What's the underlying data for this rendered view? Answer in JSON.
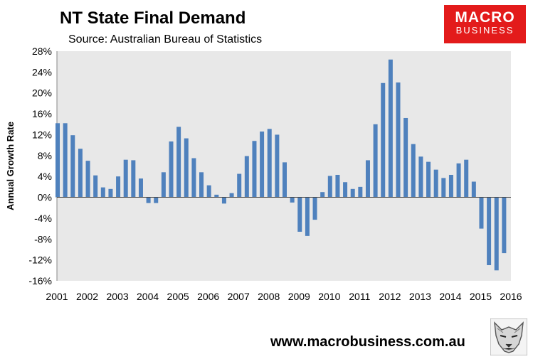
{
  "brand": {
    "logo_line1": "MACRO",
    "logo_line2": "BUSINESS",
    "url": "www.macrobusiness.com.au",
    "accent": "#e31b1b"
  },
  "chart_data": {
    "type": "bar",
    "title": "NT State Final Demand",
    "subtitle": "Source: Australian Bureau of Statistics",
    "ylabel": "Annual Growth Rate",
    "xlabel": "",
    "ylim": [
      -16,
      28
    ],
    "y_ticks": [
      "28%",
      "24%",
      "20%",
      "16%",
      "12%",
      "8%",
      "4%",
      "0%",
      "-4%",
      "-8%",
      "-12%",
      "-16%"
    ],
    "x_tick_labels": [
      "2001",
      "2002",
      "2003",
      "2004",
      "2005",
      "2006",
      "2007",
      "2008",
      "2009",
      "2010",
      "2011",
      "2012",
      "2013",
      "2014",
      "2015",
      "2016"
    ],
    "x_start": 2001,
    "x_end": 2016,
    "bar_color": "#4f81bd",
    "plot_background": "#e8e8e8",
    "grid": false,
    "series": [
      {
        "name": "Annual Growth Rate",
        "x": [
          2001.0,
          2001.25,
          2001.5,
          2001.75,
          2002.0,
          2002.25,
          2002.5,
          2002.75,
          2003.0,
          2003.25,
          2003.5,
          2003.75,
          2004.0,
          2004.25,
          2004.5,
          2004.75,
          2005.0,
          2005.25,
          2005.5,
          2005.75,
          2006.0,
          2006.25,
          2006.5,
          2006.75,
          2007.0,
          2007.25,
          2007.5,
          2007.75,
          2008.0,
          2008.25,
          2008.5,
          2008.75,
          2009.0,
          2009.25,
          2009.5,
          2009.75,
          2010.0,
          2010.25,
          2010.5,
          2010.75,
          2011.0,
          2011.25,
          2011.5,
          2011.75,
          2012.0,
          2012.25,
          2012.5,
          2012.75,
          2013.0,
          2013.25,
          2013.5,
          2013.75,
          2014.0,
          2014.25,
          2014.5,
          2014.75,
          2015.0,
          2015.25,
          2015.5,
          2015.75
        ],
        "values": [
          14.2,
          14.2,
          11.9,
          9.3,
          7.0,
          4.2,
          1.9,
          1.6,
          4.0,
          7.2,
          7.1,
          3.6,
          -1.1,
          -1.1,
          4.8,
          10.7,
          13.5,
          11.3,
          7.5,
          4.8,
          2.3,
          0.5,
          -1.2,
          0.8,
          4.5,
          7.9,
          10.8,
          12.6,
          13.1,
          12.0,
          6.7,
          -1.0,
          -6.6,
          -7.4,
          -4.3,
          1.0,
          4.1,
          4.3,
          2.9,
          1.6,
          2.0,
          7.1,
          14.0,
          21.9,
          26.4,
          22.0,
          15.2,
          10.2,
          7.8,
          6.8,
          5.3,
          3.7,
          4.3,
          6.5,
          7.2,
          3.0,
          -6.0,
          -13.0,
          -14.0,
          -10.7
        ]
      }
    ]
  }
}
